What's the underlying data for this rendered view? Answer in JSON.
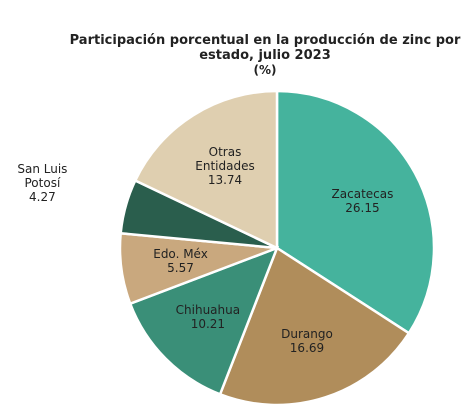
{
  "chart_data": {
    "type": "pie",
    "title": "Participación porcentual en la producción de zinc por estado, julio 2023",
    "subtitle": "(%)",
    "categories": [
      "Zacatecas",
      "Durango",
      "Chihuahua",
      "Edo. Méx",
      "San Luis Potosí",
      "Otras Entidades"
    ],
    "values": [
      26.15,
      16.69,
      10.21,
      5.57,
      4.27,
      13.74
    ],
    "colors": [
      "#45b39d",
      "#b08d5b",
      "#3a8f78",
      "#c9a87e",
      "#2a5e4d",
      "#dfcfb0"
    ]
  }
}
